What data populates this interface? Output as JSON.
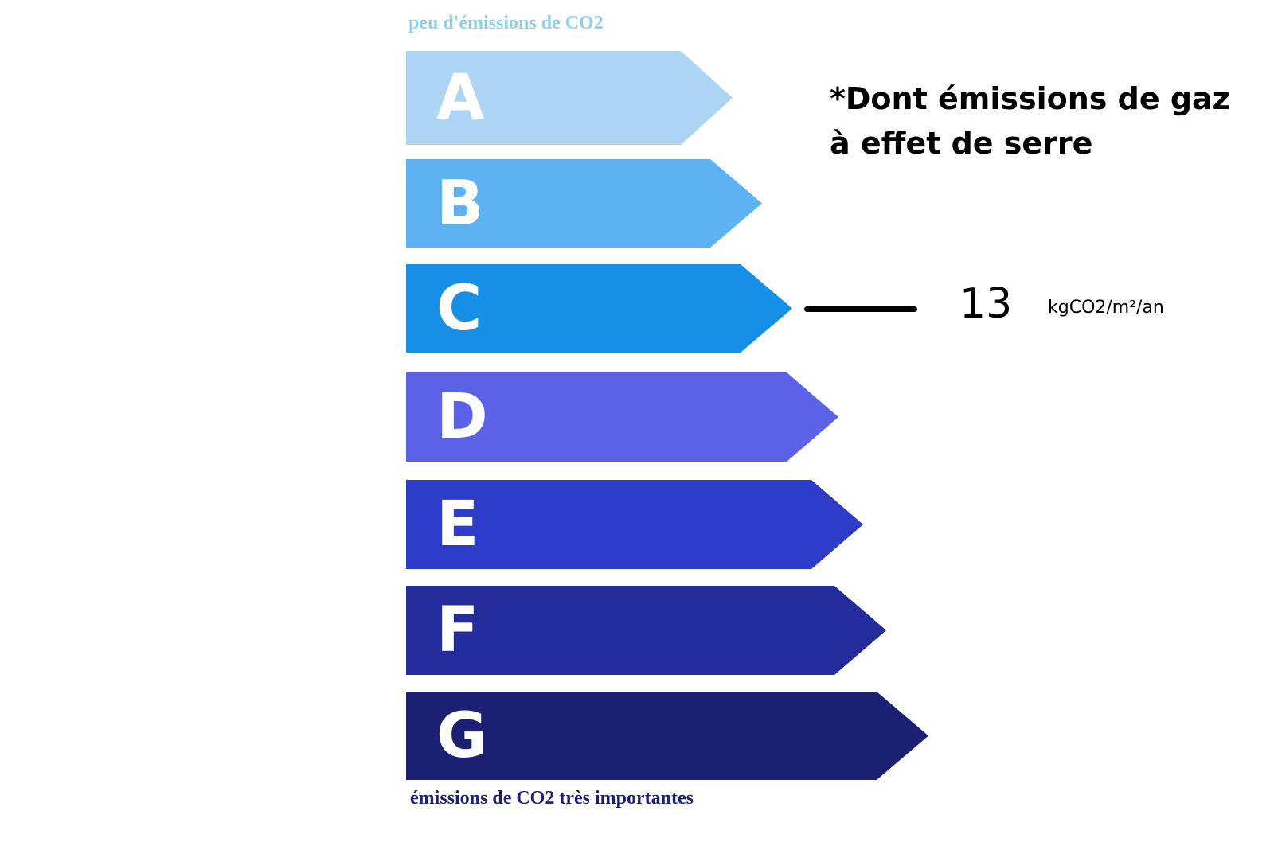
{
  "top_caption": "peu d'émissions de CO2",
  "bottom_caption": "émissions de CO2 très importantes",
  "title_line1": "*Dont émissions de gaz",
  "title_line2": "à effet de serre",
  "classes": [
    {
      "letter": "A",
      "color": "#aed4f4"
    },
    {
      "letter": "B",
      "color": "#5eb2f2"
    },
    {
      "letter": "C",
      "color": "#168fe7"
    },
    {
      "letter": "D",
      "color": "#5b62e6"
    },
    {
      "letter": "E",
      "color": "#2d3bc9"
    },
    {
      "letter": "F",
      "color": "#242c9c"
    },
    {
      "letter": "G",
      "color": "#1b2073"
    }
  ],
  "rating": {
    "class": "C",
    "value": "13",
    "unit": "kgCO2/m²/an"
  }
}
